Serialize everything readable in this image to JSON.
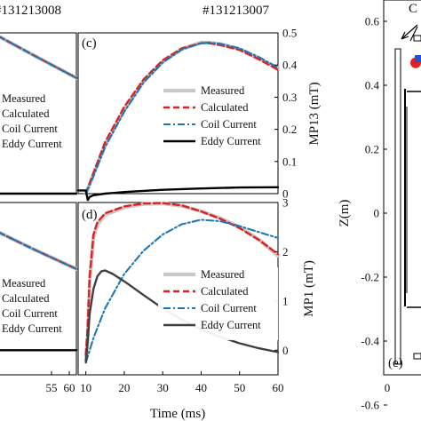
{
  "figure": {
    "shot_left": "#131213008",
    "shot_right": "#131213007"
  },
  "colors": {
    "measured": "#c8c8c8",
    "calculated": "#e02020",
    "coil": "#1f77b4",
    "eddy_top": "#000000",
    "eddy_bottom": "#404040",
    "marker_red": "#e02020",
    "marker_blue": "#2255cc"
  },
  "chart_data": [
    {
      "id": "panel-left-top",
      "type": "line",
      "partial": true,
      "xlim": [
        40,
        62
      ],
      "ylim": [
        0,
        0.5
      ],
      "legend": [
        "Measured",
        "Calculated",
        "Coil Current",
        "Eddy Current"
      ],
      "series": [
        {
          "name": "Measured",
          "x": [
            40,
            50,
            62
          ],
          "y": [
            0.49,
            0.43,
            0.36
          ]
        },
        {
          "name": "Calculated",
          "x": [
            40,
            50,
            62
          ],
          "y": [
            0.49,
            0.43,
            0.36
          ]
        },
        {
          "name": "Coil Current",
          "x": [
            40,
            50,
            62
          ],
          "y": [
            0.49,
            0.43,
            0.36
          ]
        },
        {
          "name": "Eddy Current",
          "x": [
            40,
            62
          ],
          "y": [
            0.0,
            0.0
          ]
        }
      ]
    },
    {
      "id": "panel-left-bottom",
      "type": "line",
      "partial": true,
      "xlim": [
        40,
        62
      ],
      "ylim": [
        -0.5,
        3
      ],
      "xticks": [
        55,
        60
      ],
      "xticklabels": [
        "55",
        "60"
      ],
      "legend": [
        "Measured",
        "Calculated",
        "Coil Current",
        "Eddy Current"
      ],
      "series": [
        {
          "name": "Measured",
          "x": [
            40,
            50,
            62
          ],
          "y": [
            2.4,
            2.05,
            1.65
          ]
        },
        {
          "name": "Calculated",
          "x": [
            40,
            50,
            62
          ],
          "y": [
            2.4,
            2.05,
            1.65
          ]
        },
        {
          "name": "Coil Current",
          "x": [
            40,
            50,
            62
          ],
          "y": [
            2.4,
            2.05,
            1.65
          ]
        },
        {
          "name": "Eddy Current",
          "x": [
            40,
            62
          ],
          "y": [
            0.0,
            0.0
          ]
        }
      ]
    },
    {
      "id": "panel-c",
      "type": "line",
      "panel_label": "(c)",
      "xlim": [
        8,
        60
      ],
      "ylim": [
        0,
        0.5
      ],
      "yticks": [
        0,
        0.1,
        0.2,
        0.3,
        0.4,
        0.5
      ],
      "yticklabels": [
        "0",
        "0.1",
        "0.2",
        "0.3",
        "0.4",
        "0.5"
      ],
      "ylabel": "MP13 (mT)",
      "legend_position": "center-right",
      "legend": [
        "Measured",
        "Calculated",
        "Coil Current",
        "Eddy Current"
      ],
      "series": [
        {
          "name": "Measured",
          "x": [
            10,
            12,
            15,
            20,
            25,
            30,
            35,
            40,
            42,
            45,
            50,
            55,
            60
          ],
          "y": [
            0.0,
            0.06,
            0.15,
            0.26,
            0.35,
            0.41,
            0.45,
            0.47,
            0.47,
            0.465,
            0.45,
            0.42,
            0.39
          ]
        },
        {
          "name": "Calculated",
          "x": [
            10,
            12,
            15,
            20,
            25,
            30,
            35,
            40,
            42,
            45,
            50,
            55,
            60
          ],
          "y": [
            0.0,
            0.065,
            0.16,
            0.27,
            0.355,
            0.415,
            0.452,
            0.468,
            0.468,
            0.462,
            0.447,
            0.418,
            0.385
          ]
        },
        {
          "name": "Coil Current",
          "x": [
            10,
            12,
            15,
            20,
            25,
            30,
            35,
            40,
            42,
            45,
            50,
            55,
            60
          ],
          "y": [
            0.0,
            0.055,
            0.145,
            0.255,
            0.345,
            0.408,
            0.448,
            0.468,
            0.47,
            0.466,
            0.452,
            0.425,
            0.392
          ]
        },
        {
          "name": "Eddy Current",
          "x": [
            8,
            10,
            10.5,
            11,
            12,
            15,
            20,
            30,
            40,
            50,
            60
          ],
          "y": [
            0.01,
            0.01,
            -0.02,
            -0.01,
            -0.005,
            0.0,
            0.005,
            0.012,
            0.016,
            0.019,
            0.02
          ]
        }
      ]
    },
    {
      "id": "panel-d",
      "type": "line",
      "panel_label": "(d)",
      "xlim": [
        8,
        60
      ],
      "ylim": [
        -0.5,
        3
      ],
      "xticks": [
        10,
        20,
        30,
        40,
        50,
        60
      ],
      "xticklabels": [
        "10",
        "20",
        "30",
        "40",
        "50",
        "60"
      ],
      "xlabel": "Time (ms)",
      "yticks": [
        0,
        1,
        2,
        3
      ],
      "yticklabels": [
        "0",
        "1",
        "2",
        "3"
      ],
      "ylabel": "MP1 (mT)",
      "legend_position": "lower-right",
      "legend": [
        "Measured",
        "Calculated",
        "Coil Current",
        "Eddy Current"
      ],
      "series": [
        {
          "name": "Measured",
          "x": [
            10,
            10.5,
            11,
            12,
            13,
            15,
            20,
            25,
            30,
            35,
            40,
            45,
            50,
            55,
            60
          ],
          "y": [
            -0.2,
            0.3,
            1.4,
            2.3,
            2.55,
            2.75,
            2.9,
            2.97,
            2.98,
            2.93,
            2.82,
            2.68,
            2.5,
            2.25,
            1.92
          ]
        },
        {
          "name": "Calculated",
          "x": [
            10,
            10.5,
            11,
            12,
            13,
            15,
            20,
            25,
            30,
            35,
            40,
            45,
            50,
            55,
            60
          ],
          "y": [
            -0.1,
            0.5,
            1.5,
            2.35,
            2.6,
            2.78,
            2.92,
            2.98,
            2.99,
            2.94,
            2.82,
            2.67,
            2.48,
            2.24,
            1.95
          ]
        },
        {
          "name": "Coil Current",
          "x": [
            10,
            12,
            15,
            20,
            25,
            30,
            35,
            40,
            45,
            50,
            55,
            60
          ],
          "y": [
            -0.25,
            0.25,
            0.85,
            1.55,
            2.02,
            2.35,
            2.56,
            2.65,
            2.62,
            2.52,
            2.4,
            2.28
          ]
        },
        {
          "name": "Eddy Current",
          "x": [
            10,
            10.5,
            11,
            12,
            13,
            14,
            15,
            17,
            20,
            25,
            30,
            35,
            40,
            45,
            50,
            55,
            60
          ],
          "y": [
            -0.25,
            0.2,
            0.75,
            1.25,
            1.5,
            1.6,
            1.62,
            1.55,
            1.4,
            1.12,
            0.85,
            0.62,
            0.42,
            0.27,
            0.14,
            0.04,
            -0.04
          ]
        }
      ]
    },
    {
      "id": "panel-e",
      "type": "scatter",
      "partial": true,
      "panel_label": "(e)",
      "ylabel": "Z(m)",
      "ylim": [
        -0.65,
        0.65
      ],
      "yticks": [
        -0.6,
        -0.4,
        -0.2,
        0,
        0.2,
        0.4,
        0.6
      ],
      "yticklabels": [
        "-0.6",
        "-0.4",
        "-0.2",
        "0",
        "0.2",
        "0.4",
        "0.6"
      ],
      "xticks": [
        0
      ],
      "xticklabels": [
        "0"
      ],
      "annotation": "C",
      "series": [
        {
          "name": "",
          "x": [
            0.1
          ],
          "y": [
            0.47
          ]
        }
      ]
    }
  ]
}
